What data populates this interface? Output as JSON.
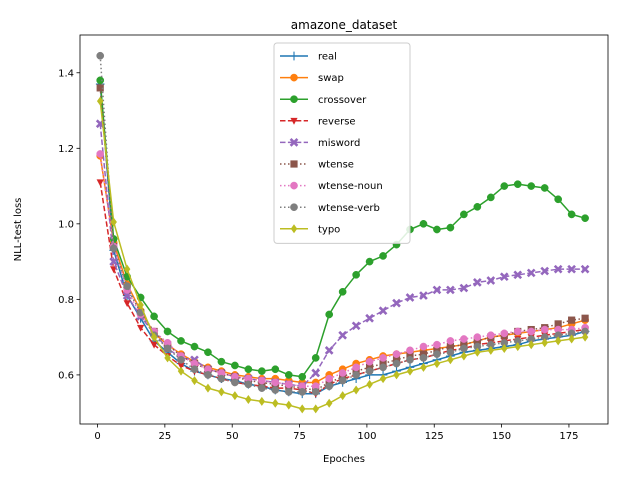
{
  "chart_data": {
    "type": "line",
    "title": "amazone_dataset",
    "xlabel": "Epoches",
    "ylabel": "NLL-test loss",
    "xlim": [
      -6.5,
      189.5
    ],
    "ylim": [
      0.47,
      1.5
    ],
    "xticks": [
      0,
      25,
      50,
      75,
      100,
      125,
      150,
      175
    ],
    "yticks": [
      0.6,
      0.8,
      1.0,
      1.2,
      1.4
    ],
    "ytick_labels": [
      "0.6",
      "0.8",
      "1.0",
      "1.2",
      "1.4"
    ],
    "grid": false,
    "legend_position": "upper center",
    "series": [
      {
        "name": "real",
        "color": "#1f77b4",
        "linestyle": "solid",
        "marker": "plus",
        "x": [
          1,
          6,
          11,
          16,
          21,
          26,
          31,
          36,
          41,
          46,
          51,
          56,
          61,
          66,
          71,
          76,
          81,
          86,
          91,
          96,
          101,
          106,
          111,
          116,
          121,
          126,
          131,
          136,
          141,
          146,
          151,
          156,
          161,
          166,
          171,
          176,
          181
        ],
        "y": [
          1.37,
          0.93,
          0.81,
          0.75,
          0.69,
          0.66,
          0.63,
          0.61,
          0.6,
          0.59,
          0.585,
          0.575,
          0.57,
          0.56,
          0.555,
          0.55,
          0.55,
          0.57,
          0.58,
          0.59,
          0.6,
          0.6,
          0.61,
          0.62,
          0.63,
          0.64,
          0.65,
          0.66,
          0.665,
          0.67,
          0.675,
          0.68,
          0.69,
          0.695,
          0.7,
          0.705,
          0.715
        ]
      },
      {
        "name": "swap",
        "color": "#ff7f0e",
        "linestyle": "solid",
        "marker": "circle",
        "x": [
          1,
          6,
          11,
          16,
          21,
          26,
          31,
          36,
          41,
          46,
          51,
          56,
          61,
          66,
          71,
          76,
          81,
          86,
          91,
          96,
          101,
          106,
          111,
          116,
          121,
          126,
          131,
          136,
          141,
          146,
          151,
          156,
          161,
          166,
          171,
          176,
          181
        ],
        "y": [
          1.18,
          0.95,
          0.84,
          0.77,
          0.71,
          0.68,
          0.655,
          0.635,
          0.62,
          0.61,
          0.6,
          0.595,
          0.59,
          0.59,
          0.585,
          0.58,
          0.58,
          0.6,
          0.615,
          0.63,
          0.64,
          0.65,
          0.655,
          0.66,
          0.665,
          0.67,
          0.675,
          0.68,
          0.69,
          0.7,
          0.705,
          0.71,
          0.715,
          0.72,
          0.725,
          0.735,
          0.745
        ]
      },
      {
        "name": "crossover",
        "color": "#2ca02c",
        "linestyle": "solid",
        "marker": "circle",
        "x": [
          1,
          6,
          11,
          16,
          21,
          26,
          31,
          36,
          41,
          46,
          51,
          56,
          61,
          66,
          71,
          76,
          81,
          86,
          91,
          96,
          101,
          106,
          111,
          116,
          121,
          126,
          131,
          136,
          141,
          146,
          151,
          156,
          161,
          166,
          171,
          176,
          181
        ],
        "y": [
          1.38,
          0.96,
          0.86,
          0.805,
          0.755,
          0.715,
          0.69,
          0.675,
          0.66,
          0.635,
          0.625,
          0.615,
          0.61,
          0.615,
          0.6,
          0.595,
          0.645,
          0.76,
          0.82,
          0.865,
          0.9,
          0.915,
          0.945,
          0.985,
          1.0,
          0.985,
          0.99,
          1.025,
          1.045,
          1.07,
          1.1,
          1.105,
          1.1,
          1.095,
          1.065,
          1.025,
          1.015
        ]
      },
      {
        "name": "reverse",
        "color": "#d62728",
        "linestyle": "dashed",
        "marker": "triangle-down",
        "x": [
          1,
          6,
          11,
          16,
          21,
          26,
          31,
          36,
          41,
          46,
          51,
          56,
          61,
          66,
          71,
          76,
          81,
          86,
          91,
          96,
          101,
          106,
          111,
          116,
          121,
          126,
          131,
          136,
          141,
          146,
          151,
          156,
          161,
          166,
          171,
          176,
          181
        ],
        "y": [
          1.11,
          0.88,
          0.79,
          0.725,
          0.68,
          0.65,
          0.625,
          0.61,
          0.6,
          0.59,
          0.58,
          0.575,
          0.57,
          0.565,
          0.565,
          0.56,
          0.55,
          0.575,
          0.59,
          0.6,
          0.61,
          0.62,
          0.63,
          0.64,
          0.645,
          0.655,
          0.665,
          0.67,
          0.68,
          0.685,
          0.69,
          0.695,
          0.7,
          0.705,
          0.71,
          0.715,
          0.72
        ]
      },
      {
        "name": "misword",
        "color": "#9467bd",
        "linestyle": "dashed",
        "marker": "x",
        "x": [
          1,
          6,
          11,
          16,
          21,
          26,
          31,
          36,
          41,
          46,
          51,
          56,
          61,
          66,
          71,
          76,
          81,
          86,
          91,
          96,
          101,
          106,
          111,
          116,
          121,
          126,
          131,
          136,
          141,
          146,
          151,
          156,
          161,
          166,
          171,
          176,
          181
        ],
        "y": [
          1.265,
          0.9,
          0.81,
          0.755,
          0.71,
          0.67,
          0.645,
          0.64,
          0.615,
          0.605,
          0.595,
          0.59,
          0.585,
          0.58,
          0.575,
          0.57,
          0.605,
          0.665,
          0.705,
          0.73,
          0.75,
          0.77,
          0.79,
          0.805,
          0.81,
          0.825,
          0.825,
          0.83,
          0.845,
          0.85,
          0.86,
          0.865,
          0.87,
          0.875,
          0.88,
          0.88,
          0.88
        ]
      },
      {
        "name": "wtense",
        "color": "#8c564b",
        "linestyle": "dotted",
        "marker": "square",
        "x": [
          1,
          6,
          11,
          16,
          21,
          26,
          31,
          36,
          41,
          46,
          51,
          56,
          61,
          66,
          71,
          76,
          81,
          86,
          91,
          96,
          101,
          106,
          111,
          116,
          121,
          126,
          131,
          136,
          141,
          146,
          151,
          156,
          161,
          166,
          171,
          176,
          181
        ],
        "y": [
          1.36,
          0.94,
          0.83,
          0.765,
          0.715,
          0.68,
          0.65,
          0.63,
          0.615,
          0.605,
          0.595,
          0.585,
          0.58,
          0.575,
          0.57,
          0.565,
          0.56,
          0.58,
          0.595,
          0.61,
          0.62,
          0.63,
          0.64,
          0.65,
          0.655,
          0.665,
          0.675,
          0.68,
          0.69,
          0.7,
          0.705,
          0.715,
          0.72,
          0.725,
          0.735,
          0.745,
          0.75
        ]
      },
      {
        "name": "wtense-noun",
        "color": "#e377c2",
        "linestyle": "dotted",
        "marker": "circle",
        "x": [
          1,
          6,
          11,
          16,
          21,
          26,
          31,
          36,
          41,
          46,
          51,
          56,
          61,
          66,
          71,
          76,
          81,
          86,
          91,
          96,
          101,
          106,
          111,
          116,
          121,
          126,
          131,
          136,
          141,
          146,
          151,
          156,
          161,
          166,
          171,
          176,
          181
        ],
        "y": [
          1.185,
          0.94,
          0.825,
          0.76,
          0.715,
          0.685,
          0.65,
          0.63,
          0.615,
          0.605,
          0.595,
          0.59,
          0.585,
          0.58,
          0.575,
          0.57,
          0.57,
          0.59,
          0.605,
          0.62,
          0.635,
          0.645,
          0.655,
          0.665,
          0.675,
          0.68,
          0.69,
          0.695,
          0.7,
          0.705,
          0.71,
          0.715,
          0.715,
          0.72,
          0.72,
          0.72,
          0.725
        ]
      },
      {
        "name": "wtense-verb",
        "color": "#7f7f7f",
        "linestyle": "dotted",
        "marker": "circle",
        "x": [
          1,
          6,
          11,
          16,
          21,
          26,
          31,
          36,
          41,
          46,
          51,
          56,
          61,
          66,
          71,
          76,
          81,
          86,
          91,
          96,
          101,
          106,
          111,
          116,
          121,
          126,
          131,
          136,
          141,
          146,
          151,
          156,
          161,
          166,
          171,
          176,
          181
        ],
        "y": [
          1.445,
          0.935,
          0.835,
          0.765,
          0.705,
          0.67,
          0.64,
          0.615,
          0.6,
          0.59,
          0.58,
          0.575,
          0.565,
          0.56,
          0.555,
          0.555,
          0.555,
          0.57,
          0.585,
          0.6,
          0.61,
          0.62,
          0.63,
          0.64,
          0.645,
          0.655,
          0.66,
          0.67,
          0.675,
          0.68,
          0.685,
          0.69,
          0.695,
          0.7,
          0.705,
          0.71,
          0.715
        ]
      },
      {
        "name": "typo",
        "color": "#bcbd22",
        "linestyle": "solid",
        "marker": "diamond",
        "x": [
          1,
          6,
          11,
          16,
          21,
          26,
          31,
          36,
          41,
          46,
          51,
          56,
          61,
          66,
          71,
          76,
          81,
          86,
          91,
          96,
          101,
          106,
          111,
          116,
          121,
          126,
          131,
          136,
          141,
          146,
          151,
          156,
          161,
          166,
          171,
          176,
          181
        ],
        "y": [
          1.325,
          1.005,
          0.88,
          0.785,
          0.7,
          0.645,
          0.61,
          0.585,
          0.565,
          0.555,
          0.545,
          0.535,
          0.53,
          0.525,
          0.52,
          0.51,
          0.51,
          0.525,
          0.545,
          0.56,
          0.575,
          0.59,
          0.6,
          0.61,
          0.62,
          0.63,
          0.64,
          0.65,
          0.66,
          0.665,
          0.67,
          0.675,
          0.68,
          0.685,
          0.69,
          0.695,
          0.7
        ]
      }
    ]
  }
}
